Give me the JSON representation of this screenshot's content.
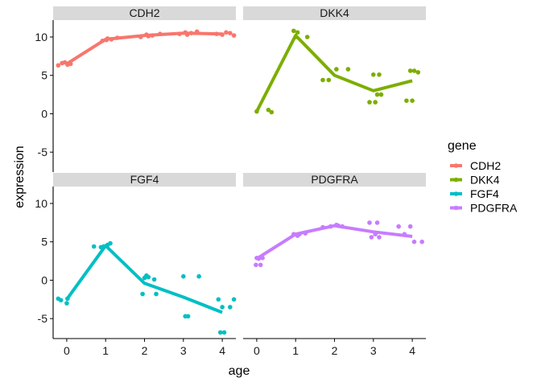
{
  "chart_data": {
    "type": "line",
    "facet_by": "gene",
    "xlabel": "age",
    "ylabel": "expression",
    "xlim": [
      -0.35,
      4.35
    ],
    "ylim": [
      -7.6,
      12.2
    ],
    "x_ticks": [
      0,
      1,
      2,
      3,
      4
    ],
    "y_ticks": [
      -5,
      0,
      5,
      10
    ],
    "grid": false,
    "legend": {
      "title": "gene",
      "placement": "right",
      "entries": [
        "CDH2",
        "DKK4",
        "FGF4",
        "PDGFRA"
      ]
    },
    "series": [
      {
        "name": "CDH2",
        "color": "#F8766D",
        "line": {
          "x": [
            0,
            1,
            2,
            3,
            4
          ],
          "y": [
            6.5,
            9.7,
            10.2,
            10.5,
            10.4
          ]
        },
        "points": [
          [
            -0.22,
            6.3
          ],
          [
            -0.12,
            6.6
          ],
          [
            0.02,
            6.4
          ],
          [
            0.1,
            6.5
          ],
          [
            -0.05,
            6.7
          ],
          [
            0.92,
            9.5
          ],
          [
            1.05,
            9.8
          ],
          [
            1.15,
            9.7
          ],
          [
            1.3,
            9.9
          ],
          [
            1.02,
            9.6
          ],
          [
            1.9,
            10.0
          ],
          [
            2.05,
            10.3
          ],
          [
            2.2,
            10.2
          ],
          [
            2.4,
            10.4
          ],
          [
            2.1,
            10.1
          ],
          [
            2.9,
            10.4
          ],
          [
            3.05,
            10.6
          ],
          [
            3.2,
            10.5
          ],
          [
            3.35,
            10.7
          ],
          [
            3.1,
            10.3
          ],
          [
            3.85,
            10.4
          ],
          [
            4.0,
            10.3
          ],
          [
            4.2,
            10.5
          ],
          [
            4.3,
            10.2
          ],
          [
            4.1,
            10.6
          ]
        ]
      },
      {
        "name": "DKK4",
        "color": "#7CAE00",
        "line": {
          "x": [
            0,
            1,
            2,
            3,
            4
          ],
          "y": [
            0.3,
            10.2,
            5.0,
            3.0,
            4.3
          ]
        },
        "points": [
          [
            0.0,
            0.3
          ],
          [
            0.3,
            0.5
          ],
          [
            0.38,
            0.2
          ],
          [
            0.95,
            10.8
          ],
          [
            1.0,
            10.0
          ],
          [
            1.05,
            10.6
          ],
          [
            1.3,
            10.0
          ],
          [
            1.7,
            4.4
          ],
          [
            1.85,
            4.4
          ],
          [
            2.05,
            5.8
          ],
          [
            2.35,
            5.8
          ],
          [
            2.9,
            1.5
          ],
          [
            3.0,
            5.1
          ],
          [
            3.05,
            1.5
          ],
          [
            3.1,
            2.5
          ],
          [
            3.15,
            5.1
          ],
          [
            3.2,
            2.5
          ],
          [
            3.85,
            1.7
          ],
          [
            3.95,
            5.6
          ],
          [
            4.0,
            1.7
          ],
          [
            4.05,
            5.6
          ],
          [
            4.15,
            5.4
          ]
        ]
      },
      {
        "name": "FGF4",
        "color": "#00BFC4",
        "line": {
          "x": [
            0,
            1,
            2,
            3,
            4
          ],
          "y": [
            -2.5,
            4.5,
            -0.4,
            -2.2,
            -4.2
          ]
        },
        "points": [
          [
            -0.22,
            -2.4
          ],
          [
            -0.15,
            -2.6
          ],
          [
            0.0,
            -3.0
          ],
          [
            0.02,
            -2.4
          ],
          [
            0.7,
            4.4
          ],
          [
            0.88,
            4.3
          ],
          [
            0.95,
            4.4
          ],
          [
            1.05,
            4.6
          ],
          [
            1.12,
            4.8
          ],
          [
            1.95,
            -1.8
          ],
          [
            2.0,
            0.3
          ],
          [
            2.05,
            0.6
          ],
          [
            2.1,
            0.4
          ],
          [
            2.25,
            0.1
          ],
          [
            2.3,
            -1.8
          ],
          [
            3.0,
            0.5
          ],
          [
            3.05,
            -4.7
          ],
          [
            3.12,
            -4.7
          ],
          [
            3.4,
            0.5
          ],
          [
            3.9,
            -2.5
          ],
          [
            3.95,
            -6.8
          ],
          [
            4.0,
            -3.5
          ],
          [
            4.05,
            -6.8
          ],
          [
            4.2,
            -3.5
          ],
          [
            4.3,
            -2.5
          ]
        ]
      },
      {
        "name": "PDGFRA",
        "color": "#C77CFF",
        "line": {
          "x": [
            0,
            1,
            2,
            3,
            4
          ],
          "y": [
            2.8,
            6.0,
            7.1,
            6.3,
            5.7
          ]
        },
        "points": [
          [
            -0.02,
            2.0
          ],
          [
            0.0,
            2.9
          ],
          [
            0.05,
            2.8
          ],
          [
            0.1,
            2.0
          ],
          [
            0.15,
            2.9
          ],
          [
            0.95,
            6.0
          ],
          [
            1.05,
            5.8
          ],
          [
            1.1,
            6.0
          ],
          [
            1.25,
            6.1
          ],
          [
            1.7,
            6.9
          ],
          [
            1.9,
            7.0
          ],
          [
            2.05,
            7.2
          ],
          [
            2.1,
            7.1
          ],
          [
            2.2,
            7.0
          ],
          [
            2.9,
            7.5
          ],
          [
            2.95,
            5.6
          ],
          [
            3.05,
            6.0
          ],
          [
            3.1,
            7.5
          ],
          [
            3.15,
            5.6
          ],
          [
            3.65,
            7.0
          ],
          [
            3.8,
            6.0
          ],
          [
            3.95,
            7.0
          ],
          [
            4.05,
            5.0
          ],
          [
            4.25,
            5.0
          ]
        ]
      }
    ]
  }
}
